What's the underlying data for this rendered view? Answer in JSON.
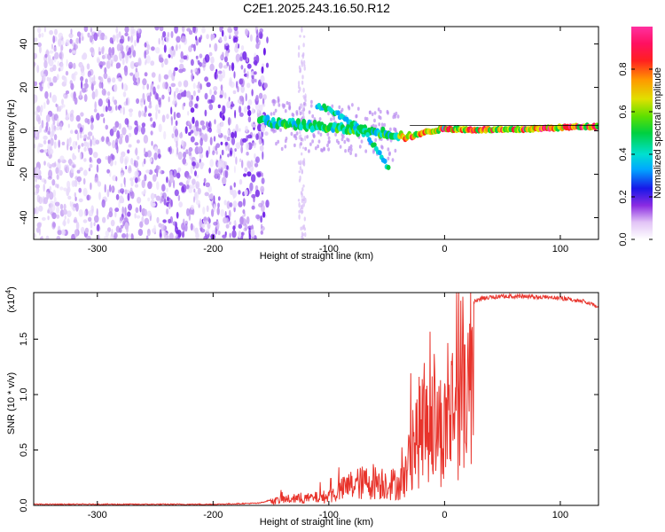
{
  "title": "C2E1.2025.243.16.50.R12",
  "colors": {
    "signal": "#e8332b",
    "scatter": "#6a19e8",
    "background": "#ffffff",
    "axis": "#000000"
  },
  "chart_data": [
    {
      "type": "heatmap",
      "name": "spectrogram",
      "title": "C2E1.2025.243.16.50.R12",
      "xlabel": "Height of straight line (km)",
      "ylabel": "Frequency (Hz)",
      "xlim": [
        -355,
        133
      ],
      "ylim": [
        -50,
        48
      ],
      "xticks": [
        -300,
        -200,
        -100,
        0,
        100
      ],
      "xtick_labels": [
        "-300",
        "-200",
        "-100",
        "0",
        "100"
      ],
      "yticks": [
        -40,
        -20,
        0,
        20,
        40
      ],
      "ytick_labels": [
        "-40",
        "-20",
        "0",
        "20",
        "40"
      ],
      "noise_region_km": [
        -355,
        -153
      ],
      "noise_gap_km": [
        [
          -143,
          -126
        ]
      ],
      "signal_track": {
        "x": [
          -160,
          -150,
          -140,
          -130,
          -120,
          -110,
          -100,
          -90,
          -80,
          -70,
          -60,
          -50,
          -40,
          -30,
          -20,
          -10,
          0,
          20,
          40,
          60,
          80,
          100,
          120,
          133
        ],
        "y": [
          5,
          4,
          3,
          3,
          2.5,
          2,
          1.5,
          1,
          0.5,
          0,
          -0.5,
          -1,
          -2,
          -3,
          -1,
          0,
          1,
          0.5,
          0.5,
          0.5,
          1,
          1.5,
          2,
          2
        ]
      },
      "branch_track": {
        "x": [
          -110,
          -100,
          -90,
          -80,
          -70,
          -60,
          -55,
          -48
        ],
        "y": [
          12,
          10,
          7,
          4,
          0,
          -7,
          -12,
          -17
        ]
      },
      "colorbar": {
        "label": "Normalized spectral amplitude",
        "ticks": [
          0.0,
          0.2,
          0.4,
          0.6,
          0.8
        ],
        "tick_labels": [
          "0.0",
          "0.2",
          "0.4",
          "0.6",
          "0.8"
        ],
        "range": [
          0,
          1
        ]
      }
    },
    {
      "type": "line",
      "name": "snr",
      "xlabel": "Height of straight line (km)",
      "ylabel": "SNR (10 * v/v)",
      "scale_label": "(x10",
      "scale_exponent": "4",
      "scale_suffix": ")",
      "xlim": [
        -355,
        133
      ],
      "ylim": [
        0,
        1.92
      ],
      "xticks": [
        -300,
        -200,
        -100,
        0,
        100
      ],
      "xtick_labels": [
        "-300",
        "-200",
        "-100",
        "0",
        "100"
      ],
      "yticks": [
        0.0,
        0.5,
        1.0,
        1.5
      ],
      "ytick_labels": [
        "0.0",
        "0.5",
        "1.0",
        "1.5"
      ],
      "envelope": {
        "x": [
          -355,
          -200,
          -160,
          -150,
          -140,
          -120,
          -100,
          -90,
          -80,
          -70,
          -60,
          -50,
          -40,
          -35,
          -30,
          -28,
          -25,
          -20,
          -15,
          -10,
          -5,
          0,
          5,
          10,
          15,
          20,
          25,
          30,
          40,
          60,
          80,
          100,
          120,
          133
        ],
        "y": [
          0.01,
          0.01,
          0.02,
          0.05,
          0.08,
          0.09,
          0.12,
          0.2,
          0.28,
          0.3,
          0.33,
          0.3,
          0.28,
          0.35,
          0.6,
          0.9,
          0.85,
          1.05,
          1.2,
          1.1,
          1.05,
          1.0,
          1.25,
          1.45,
          1.6,
          1.75,
          1.85,
          1.88,
          1.9,
          1.91,
          1.9,
          1.89,
          1.86,
          1.82
        ]
      }
    }
  ]
}
